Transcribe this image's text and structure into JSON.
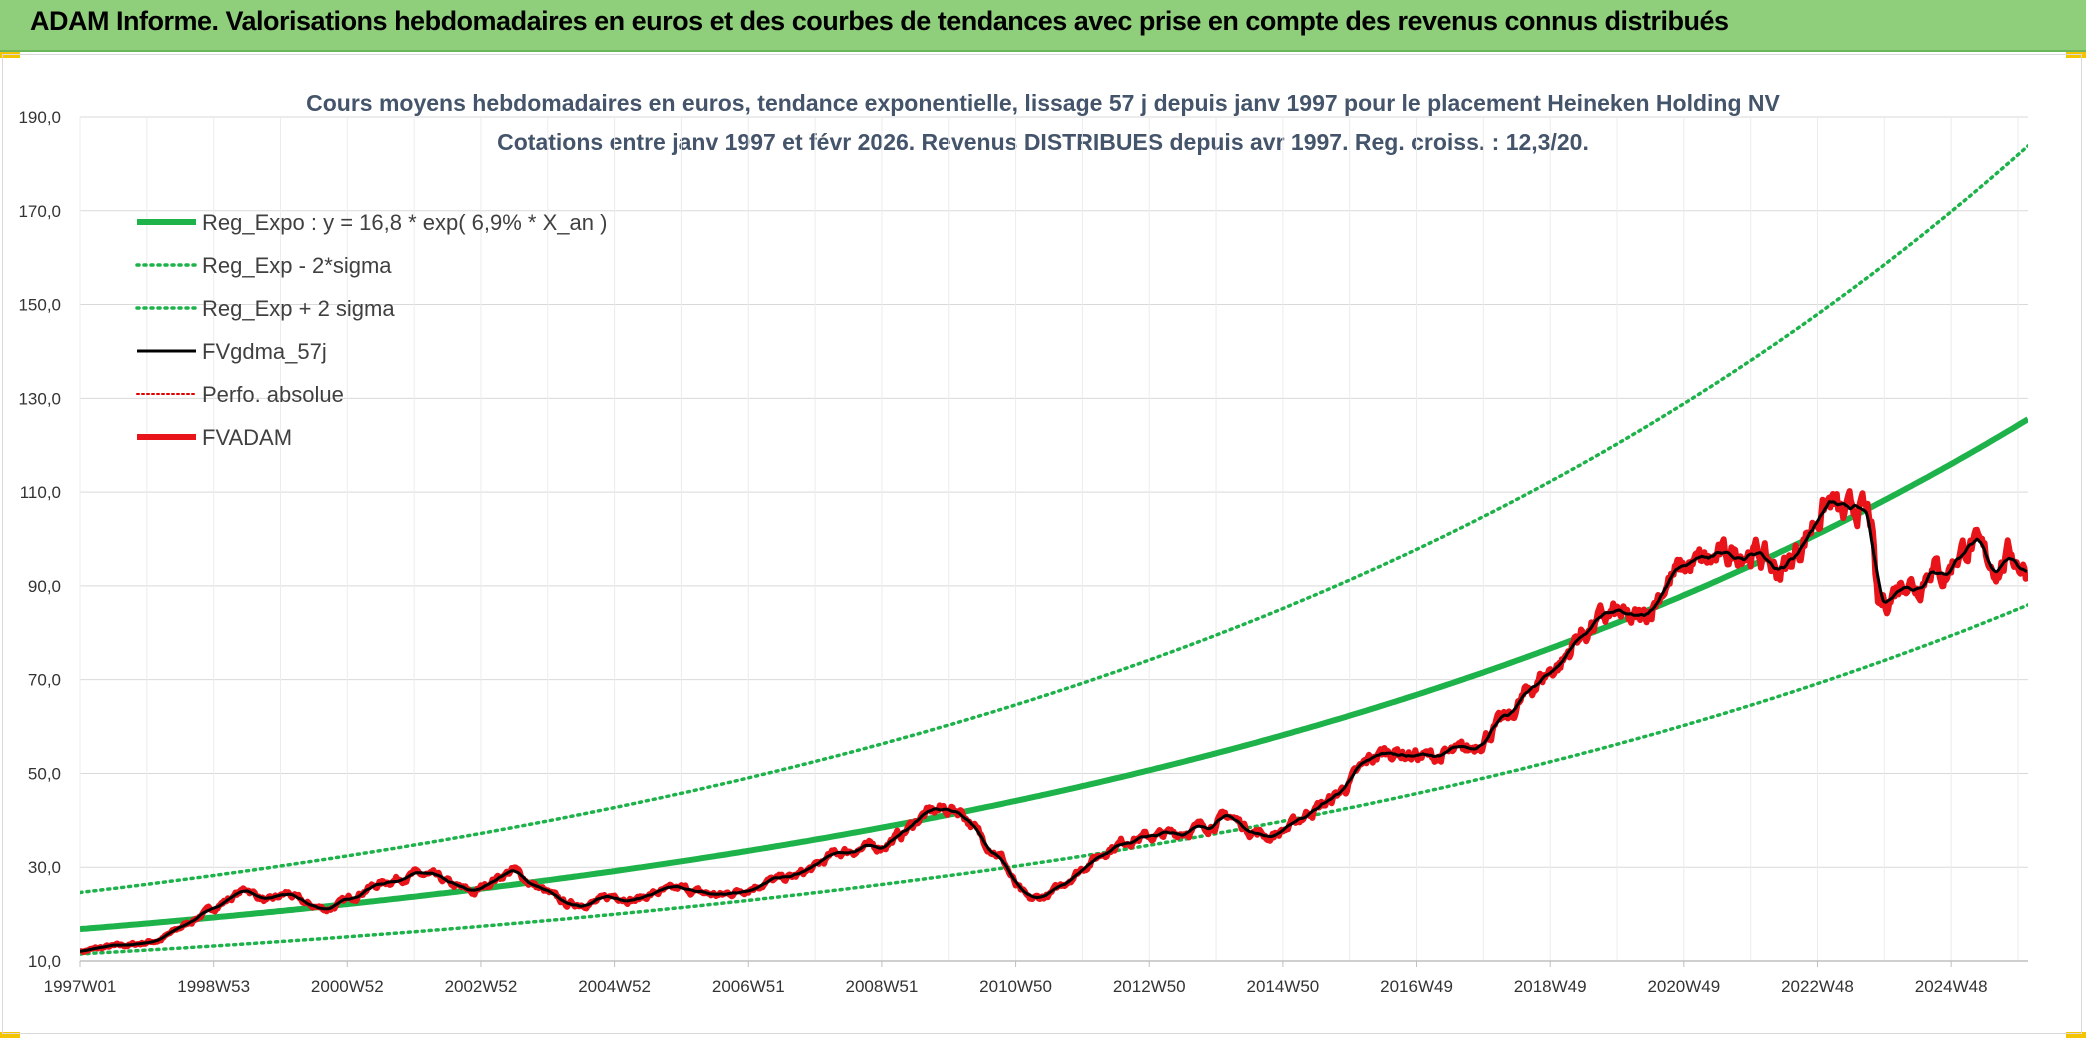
{
  "header": {
    "title": "ADAM Informe. Valorisations hebdomadaires en euros et des courbes de tendances avec prise en compte des revenus connus distribués"
  },
  "chart_data": {
    "type": "line",
    "title": "Cours moyens hebdomadaires en euros, tendance exponentielle, lissage 57 j depuis janv 1997 pour le placement Heineken Holding NV",
    "subtitle": "Cotations entre janv 1997 et févr 2026. Revenus DISTRIBUES depuis avr 1997. Reg. croiss. : 12,3/20.",
    "xlabel": "",
    "ylabel": "",
    "x_range": [
      1997.0,
      2026.15
    ],
    "ylim": [
      10,
      190
    ],
    "y_ticks": [
      "10,0",
      "30,0",
      "50,0",
      "70,0",
      "90,0",
      "110,0",
      "130,0",
      "150,0",
      "170,0",
      "190,0"
    ],
    "x_ticks": [
      {
        "label": "1997W01",
        "year": 1997.0
      },
      {
        "label": "1998W53",
        "year": 1999.0
      },
      {
        "label": "2000W52",
        "year": 2001.0
      },
      {
        "label": "2002W52",
        "year": 2003.0
      },
      {
        "label": "2004W52",
        "year": 2005.0
      },
      {
        "label": "2006W51",
        "year": 2007.0
      },
      {
        "label": "2008W51",
        "year": 2009.0
      },
      {
        "label": "2010W50",
        "year": 2011.0
      },
      {
        "label": "2012W50",
        "year": 2013.0
      },
      {
        "label": "2014W50",
        "year": 2015.0
      },
      {
        "label": "2016W49",
        "year": 2017.0
      },
      {
        "label": "2018W49",
        "year": 2019.0
      },
      {
        "label": "2020W49",
        "year": 2021.0
      },
      {
        "label": "2022W48",
        "year": 2023.0
      },
      {
        "label": "2024W48",
        "year": 2025.0
      }
    ],
    "grid": true,
    "legend_position": "top-left",
    "series": [
      {
        "name": "Reg_Expo : y = 16,8 * exp( 6,9% *  X_an )",
        "kind": "exp",
        "a": 16.8,
        "b": 0.069,
        "color": "#1db34a",
        "style": "solid-thick"
      },
      {
        "name": "Reg_Exp - 2*sigma",
        "kind": "exp",
        "a": 11.5,
        "b": 0.069,
        "color": "#1db34a",
        "style": "dotted"
      },
      {
        "name": "Reg_Exp + 2 sigma",
        "kind": "exp",
        "a": 24.6,
        "b": 0.069,
        "color": "#1db34a",
        "style": "dotted"
      },
      {
        "name": "FVgdma_57j",
        "kind": "smooth",
        "color": "#000000",
        "style": "solid"
      },
      {
        "name": "Perfo. absolue",
        "kind": "none",
        "color": "#e00000",
        "style": "dotted-thin"
      },
      {
        "name": "FVADAM",
        "kind": "price",
        "color": "#e8141a",
        "style": "solid-thick"
      }
    ],
    "price_points": [
      [
        1997.0,
        12.0
      ],
      [
        1997.4,
        13.0
      ],
      [
        1997.8,
        13.5
      ],
      [
        1998.2,
        14.5
      ],
      [
        1998.6,
        18.0
      ],
      [
        1998.9,
        20.5
      ],
      [
        1999.2,
        23.0
      ],
      [
        1999.5,
        25.5
      ],
      [
        1999.8,
        22.5
      ],
      [
        2000.1,
        24.5
      ],
      [
        2000.4,
        22.0
      ],
      [
        2000.7,
        21.0
      ],
      [
        2001.0,
        23.0
      ],
      [
        2001.3,
        25.5
      ],
      [
        2001.6,
        27.0
      ],
      [
        2002.0,
        28.5
      ],
      [
        2002.3,
        28.0
      ],
      [
        2002.6,
        26.0
      ],
      [
        2002.9,
        24.5
      ],
      [
        2003.2,
        27.5
      ],
      [
        2003.5,
        29.5
      ],
      [
        2003.7,
        27.0
      ],
      [
        2004.0,
        24.5
      ],
      [
        2004.3,
        22.0
      ],
      [
        2004.7,
        22.5
      ],
      [
        2005.0,
        24.0
      ],
      [
        2005.3,
        23.0
      ],
      [
        2005.6,
        24.5
      ],
      [
        2006.0,
        25.5
      ],
      [
        2006.3,
        24.5
      ],
      [
        2006.6,
        24.0
      ],
      [
        2007.0,
        25.5
      ],
      [
        2007.3,
        27.0
      ],
      [
        2007.7,
        28.0
      ],
      [
        2008.0,
        30.0
      ],
      [
        2008.3,
        33.0
      ],
      [
        2008.7,
        34.0
      ],
      [
        2009.0,
        34.5
      ],
      [
        2009.3,
        37.0
      ],
      [
        2009.6,
        41.0
      ],
      [
        2009.9,
        42.5
      ],
      [
        2010.2,
        42.0
      ],
      [
        2010.5,
        36.0
      ],
      [
        2010.8,
        32.0
      ],
      [
        2011.0,
        26.0
      ],
      [
        2011.2,
        23.0
      ],
      [
        2011.5,
        24.0
      ],
      [
        2011.8,
        27.5
      ],
      [
        2012.1,
        31.0
      ],
      [
        2012.4,
        34.0
      ],
      [
        2012.7,
        36.0
      ],
      [
        2013.0,
        36.5
      ],
      [
        2013.3,
        37.0
      ],
      [
        2013.6,
        38.0
      ],
      [
        2013.9,
        39.0
      ],
      [
        2014.2,
        41.0
      ],
      [
        2014.5,
        38.0
      ],
      [
        2014.8,
        36.5
      ],
      [
        2015.1,
        38.5
      ],
      [
        2015.4,
        42.0
      ],
      [
        2015.7,
        44.0
      ],
      [
        2016.0,
        48.0
      ],
      [
        2016.3,
        53.0
      ],
      [
        2016.6,
        55.0
      ],
      [
        2016.9,
        54.0
      ],
      [
        2017.2,
        53.5
      ],
      [
        2017.5,
        54.0
      ],
      [
        2017.8,
        55.0
      ],
      [
        2018.1,
        59.0
      ],
      [
        2018.4,
        62.0
      ],
      [
        2018.7,
        68.0
      ],
      [
        2019.0,
        72.0
      ],
      [
        2019.2,
        74.0
      ],
      [
        2019.4,
        79.0
      ],
      [
        2019.6,
        81.0
      ],
      [
        2019.8,
        83.0
      ],
      [
        2020.0,
        84.0
      ],
      [
        2020.2,
        82.0
      ],
      [
        2020.4,
        83.0
      ],
      [
        2020.7,
        90.0
      ],
      [
        2021.0,
        94.0
      ],
      [
        2021.3,
        95.0
      ],
      [
        2021.6,
        96.0
      ],
      [
        2021.9,
        98.0
      ],
      [
        2022.2,
        96.0
      ],
      [
        2022.4,
        93.0
      ],
      [
        2022.6,
        95.0
      ],
      [
        2022.8,
        100.0
      ],
      [
        2023.0,
        105.0
      ],
      [
        2023.2,
        108.0
      ],
      [
        2023.4,
        104.0
      ],
      [
        2023.6,
        107.0
      ],
      [
        2023.8,
        104.0
      ],
      [
        2023.9,
        85.0
      ],
      [
        2024.1,
        88.0
      ],
      [
        2024.3,
        92.0
      ],
      [
        2024.5,
        90.0
      ],
      [
        2024.7,
        95.0
      ],
      [
        2024.9,
        92.0
      ],
      [
        2025.1,
        97.0
      ],
      [
        2025.3,
        99.0
      ],
      [
        2025.5,
        96.0
      ],
      [
        2025.7,
        94.0
      ],
      [
        2025.9,
        97.0
      ],
      [
        2026.15,
        93.0
      ]
    ]
  }
}
